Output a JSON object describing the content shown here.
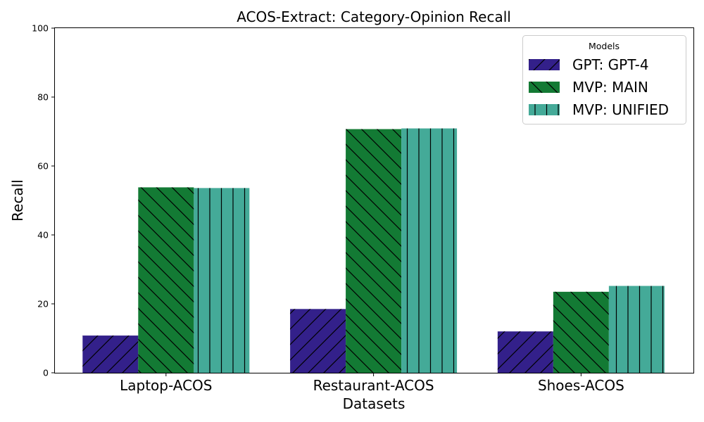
{
  "chart_data": {
    "type": "bar",
    "title": "ACOS-Extract: Category-Opinion Recall",
    "xlabel": "Datasets",
    "ylabel": "Recall",
    "ylim": [
      0,
      100
    ],
    "yticks": [
      "0",
      "20",
      "40",
      "60",
      "80",
      "100"
    ],
    "categories": [
      "Laptop-ACOS",
      "Restaurant-ACOS",
      "Shoes-ACOS"
    ],
    "grid": false,
    "legend": {
      "title": "Models",
      "placement": "top-right"
    },
    "series": [
      {
        "name": "GPT: GPT-4",
        "values": [
          10.8,
          18.5,
          12.0
        ],
        "color": "#33208a",
        "hatch": "forward-diagonal"
      },
      {
        "name": "MVP: MAIN",
        "values": [
          53.8,
          70.7,
          23.5
        ],
        "color": "#137a34",
        "hatch": "back-diagonal"
      },
      {
        "name": "MVP: UNIFIED",
        "values": [
          53.6,
          70.9,
          25.2
        ],
        "color": "#44aa98",
        "hatch": "vertical"
      }
    ]
  }
}
